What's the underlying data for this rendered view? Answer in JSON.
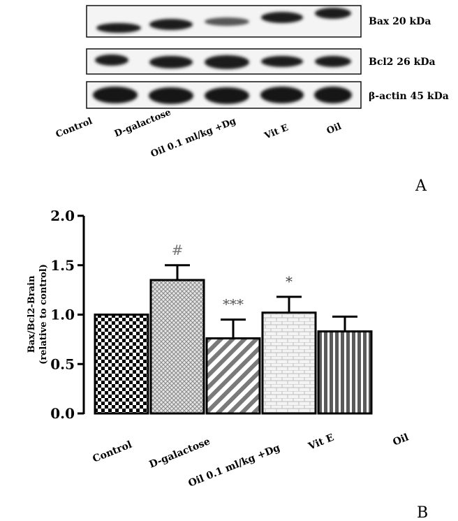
{
  "blot": {
    "bands": [
      {
        "label": "Bax 20 kDa"
      },
      {
        "label": "Bcl2 26 kDa"
      },
      {
        "label": "β-actin 45 kDa"
      }
    ],
    "lanes": [
      "Control",
      "D-galactose",
      "Oil 0.1 ml/kg +Dg",
      "Vit E",
      "Oil"
    ],
    "panel_label": "A"
  },
  "chart_data": {
    "type": "bar",
    "categories": [
      "Control",
      "D-galactose",
      "Oil 0.1 ml/kg +Dg",
      "Vit E",
      "Oil"
    ],
    "values": [
      1.0,
      1.35,
      0.76,
      1.02,
      0.83
    ],
    "errors": [
      0.0,
      0.15,
      0.19,
      0.16,
      0.15
    ],
    "annotations": [
      "",
      "#",
      "***",
      "*",
      ""
    ],
    "ylabel": "Bax/Bcl2-Brain",
    "ylabel2": "(relative to control)",
    "ylim": [
      0,
      2.0
    ],
    "yticks": [
      "0.0",
      "0.5",
      "1.0",
      "1.5",
      "2.0"
    ],
    "grid": false,
    "panel_label": "B"
  }
}
